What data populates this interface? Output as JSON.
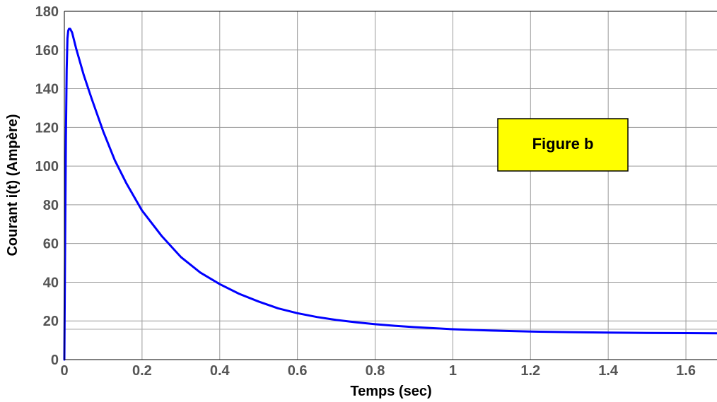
{
  "chart_data": {
    "type": "line",
    "title": "",
    "xlabel": "Temps  (sec)",
    "ylabel": "Courant i(t)  (Ampère)",
    "xlim": [
      0,
      1.68
    ],
    "ylim": [
      0,
      180
    ],
    "xticks": [
      0,
      0.2,
      0.4,
      0.6,
      0.8,
      1,
      1.2,
      1.4,
      1.6
    ],
    "xtick_labels": [
      "0",
      "0.2",
      "0.4",
      "0.6",
      "0.8",
      "1",
      "1.2",
      "1.4",
      "1.6"
    ],
    "yticks": [
      0,
      20,
      40,
      60,
      80,
      100,
      120,
      140,
      160,
      180
    ],
    "ytick_labels": [
      "0",
      "20",
      "40",
      "60",
      "80",
      "100",
      "120",
      "140",
      "160",
      "180"
    ],
    "grid": true,
    "annotation": "Figure  b",
    "annotation_fill": "#ffff00",
    "line_color": "#0000ff",
    "series": [
      {
        "x": [
          0,
          0.002,
          0.004,
          0.006,
          0.008,
          0.01,
          0.012,
          0.015,
          0.02,
          0.03,
          0.05,
          0.07,
          0.1,
          0.13,
          0.16,
          0.2,
          0.25,
          0.3,
          0.35,
          0.4,
          0.45,
          0.5,
          0.55,
          0.6,
          0.65,
          0.7,
          0.75,
          0.8,
          0.85,
          0.9,
          1.0,
          1.1,
          1.2,
          1.3,
          1.4,
          1.5,
          1.6,
          1.68
        ],
        "y": [
          0,
          60,
          115,
          150,
          166,
          170,
          171,
          171,
          169,
          161,
          147,
          135,
          118,
          103,
          91,
          77,
          64,
          53,
          45,
          39,
          34,
          30,
          26.5,
          24,
          22,
          20.5,
          19.3,
          18.3,
          17.5,
          16.8,
          15.7,
          15,
          14.5,
          14.2,
          14,
          13.8,
          13.7,
          13.6
        ]
      }
    ]
  }
}
